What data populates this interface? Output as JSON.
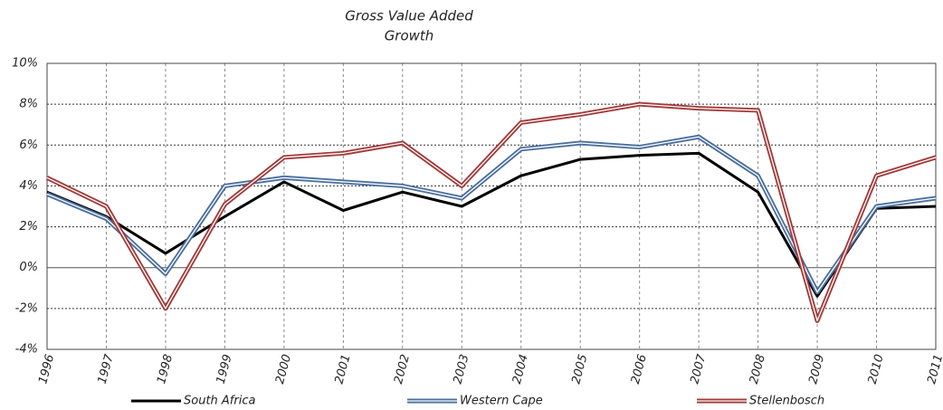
{
  "chart_data": {
    "type": "line",
    "title": "Gross Value Added",
    "subtitle": "Growth",
    "categories": [
      "1996",
      "1997",
      "1998",
      "1999",
      "2000",
      "2001",
      "2002",
      "2003",
      "2004",
      "2005",
      "2006",
      "2007",
      "2008",
      "2009",
      "2010",
      "2011"
    ],
    "series": [
      {
        "name": "South Africa",
        "color": "#000000",
        "values": [
          3.7,
          2.5,
          0.7,
          2.5,
          4.2,
          2.8,
          3.7,
          3.0,
          4.5,
          5.3,
          5.5,
          5.6,
          3.7,
          -1.4,
          2.9,
          3.0
        ]
      },
      {
        "name": "Western Cape",
        "color": "#4a6fa0",
        "values": [
          3.6,
          2.4,
          -0.3,
          4.0,
          4.4,
          4.2,
          4.0,
          3.4,
          5.8,
          6.1,
          5.9,
          6.4,
          4.5,
          -1.2,
          3.0,
          3.4
        ]
      },
      {
        "name": "Stellenbosch",
        "color": "#a33a3a",
        "values": [
          4.4,
          3.0,
          -2.0,
          3.1,
          5.4,
          5.6,
          6.1,
          4.0,
          7.1,
          7.5,
          8.0,
          7.8,
          7.7,
          -2.6,
          4.5,
          5.4
        ]
      }
    ],
    "ylim": [
      -4,
      10
    ],
    "yticks": [
      {
        "value": -4,
        "label": "-4%"
      },
      {
        "value": -2,
        "label": "-2%"
      },
      {
        "value": 0,
        "label": "0%"
      },
      {
        "value": 2,
        "label": "2%"
      },
      {
        "value": 4,
        "label": "4%"
      },
      {
        "value": 6,
        "label": "6%"
      },
      {
        "value": 8,
        "label": "8%"
      },
      {
        "value": 10,
        "label": "10%"
      }
    ],
    "grid": true,
    "legend": "bottom"
  }
}
